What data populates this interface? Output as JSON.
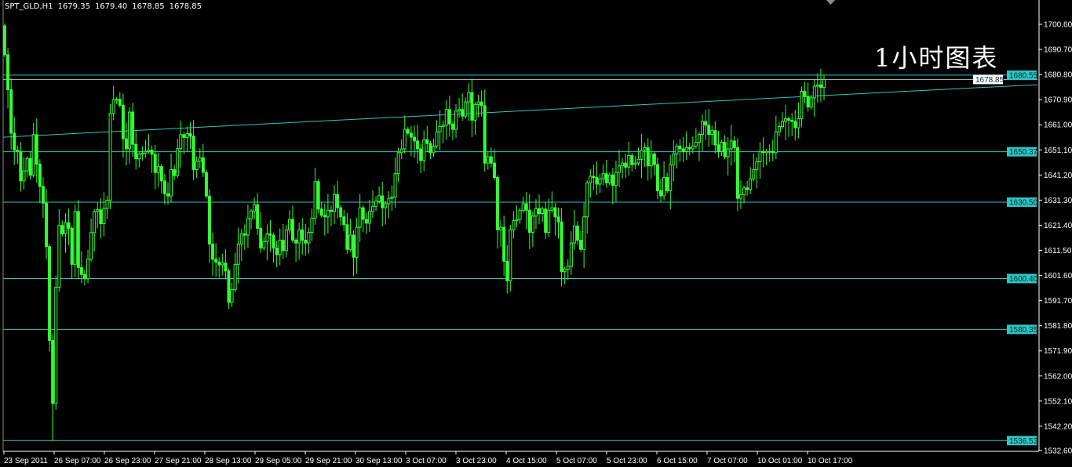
{
  "header": {
    "symbol": "SPT_GLD,H1",
    "open": "1679.35",
    "high": "1679.40",
    "low": "1678.85",
    "close": "1678.85"
  },
  "watermark": "1小时图表",
  "colors": {
    "background": "#000000",
    "candle": "#33ff33",
    "level_line": "#2ec4c4",
    "bid_line": "#c0c0c0",
    "axis": "#ffffff"
  },
  "chart_data": {
    "type": "candlestick",
    "timeframe": "H1",
    "ylim": [
      1532.6,
      1700.6
    ],
    "grid": false,
    "first_open": 1700.0,
    "close": [
      1688.6,
      1674.8,
      1657.7,
      1651,
      1650.5,
      1638.9,
      1642.8,
      1647.7,
      1641.1,
      1657.1,
      1645.5,
      1636.7,
      1630.1,
      1613,
      1576,
      1551.2,
      1597,
      1621.3,
      1618,
      1622.4,
      1620.2,
      1606,
      1626.8,
      1604.7,
      1602,
      1600.3,
      1608,
      1618.5,
      1626.8,
      1627.5,
      1622,
      1628,
      1631.2,
      1665.4,
      1670.9,
      1671,
      1668.7,
      1655.5,
      1651.5,
      1666,
      1653.3,
      1647.6,
      1649.4,
      1649.8,
      1650.5,
      1651,
      1649.4,
      1642.2,
      1644.5,
      1638.9,
      1633.8,
      1632.9,
      1643.3,
      1641,
      1651.6,
      1657.1,
      1656,
      1657.5,
      1656.5,
      1643.3,
      1646.6,
      1648,
      1642.2,
      1632.9,
      1614,
      1608,
      1606.9,
      1605.8,
      1606.5,
      1603.4,
      1591,
      1596,
      1606,
      1614,
      1618,
      1617.5,
      1624,
      1627,
      1629.5,
      1620.2,
      1612.4,
      1615,
      1618,
      1617.5,
      1612.4,
      1609.8,
      1615.5,
      1611.4,
      1619.6,
      1623.7,
      1615.5,
      1614.4,
      1619.6,
      1615.5,
      1614.4,
      1618.6,
      1624.2,
      1638.6,
      1627.8,
      1625.3,
      1624.7,
      1627.3,
      1626.8,
      1633.5,
      1628.3,
      1624.7,
      1621.6,
      1611.9,
      1617.5,
      1608.8,
      1620.6,
      1628.3,
      1623.7,
      1622.2,
      1626.8,
      1628.9,
      1630.9,
      1633,
      1628.3,
      1629.9,
      1632,
      1632.5,
      1641.7,
      1650,
      1651.5,
      1659.2,
      1657.7,
      1656.1,
      1654.6,
      1651.5,
      1646.9,
      1655.1,
      1653.6,
      1650,
      1652.6,
      1658.2,
      1660.3,
      1660.8,
      1667,
      1661.3,
      1659.2,
      1666.4,
      1667,
      1664.4,
      1670,
      1673.7,
      1662.8,
      1669,
      1670,
      1668.5,
      1645.9,
      1648.4,
      1645.9,
      1640.2,
      1619.6,
      1620.6,
      1607.2,
      1599.5,
      1619.6,
      1623.2,
      1623.7,
      1627.3,
      1629.9,
      1627.3,
      1618.6,
      1625,
      1628,
      1626,
      1627.8,
      1618.6,
      1627.3,
      1628.3,
      1624.7,
      1622.7,
      1603.1,
      1604.1,
      1605.2,
      1614.4,
      1621.1,
      1615.5,
      1611.9,
      1624.7,
      1638.1,
      1640.7,
      1640.2,
      1637.6,
      1639.7,
      1641.7,
      1638.1,
      1641.2,
      1637.1,
      1642.2,
      1644.8,
      1645.9,
      1644.3,
      1648.9,
      1645.3,
      1645.9,
      1647.4,
      1651,
      1652,
      1644.8,
      1649.5,
      1645.3,
      1635,
      1633,
      1640.2,
      1635,
      1645.3,
      1649.5,
      1652.6,
      1651.5,
      1650.5,
      1652,
      1651.5,
      1652.6,
      1654.1,
      1657.2,
      1662.3,
      1660.8,
      1657.2,
      1658.7,
      1653.1,
      1650.5,
      1654.1,
      1648.4,
      1651.5,
      1654.6,
      1652,
      1632,
      1633.5,
      1636.1,
      1635.5,
      1639.7,
      1643.3,
      1646.4,
      1650.5,
      1650,
      1650.5,
      1650.5,
      1650,
      1658.2,
      1660.3,
      1662.3,
      1663.4,
      1662.8,
      1662.3,
      1659.8,
      1663.4,
      1674.2,
      1672.1,
      1668,
      1671.6,
      1676.2,
      1676.7,
      1675.7,
      1678.85
    ],
    "low_wick": 1536.53,
    "y_ticks": [
      "1700.60",
      "1690.70",
      "1680.80",
      "1670.90",
      "1661.00",
      "1651.10",
      "1641.20",
      "1631.30",
      "1621.40",
      "1611.50",
      "1601.60",
      "1591.70",
      "1581.80",
      "1571.90",
      "1562.00",
      "1552.10",
      "1542.20",
      "1532.60"
    ],
    "x_ticks": [
      "23 Sep 2011",
      "26 Sep 07:00",
      "26 Sep 23:00",
      "27 Sep 21:00",
      "28 Sep 13:00",
      "29 Sep 05:00",
      "29 Sep 21:00",
      "30 Sep 13:00",
      "3 Oct 07:00",
      "3 Oct 23:00",
      "4 Oct 15:00",
      "5 Oct 07:00",
      "5 Oct 23:00",
      "6 Oct 15:00",
      "7 Oct 07:00",
      "10 Oct 01:00",
      "10 Oct 17:00"
    ],
    "levels": [
      "1680.55",
      "1650.37",
      "1630.50",
      "1600.40",
      "1580.35",
      "1536.53"
    ],
    "bid": "1678.85",
    "trendline": {
      "start_price": 1656.1,
      "end_price": 1676.8
    }
  }
}
